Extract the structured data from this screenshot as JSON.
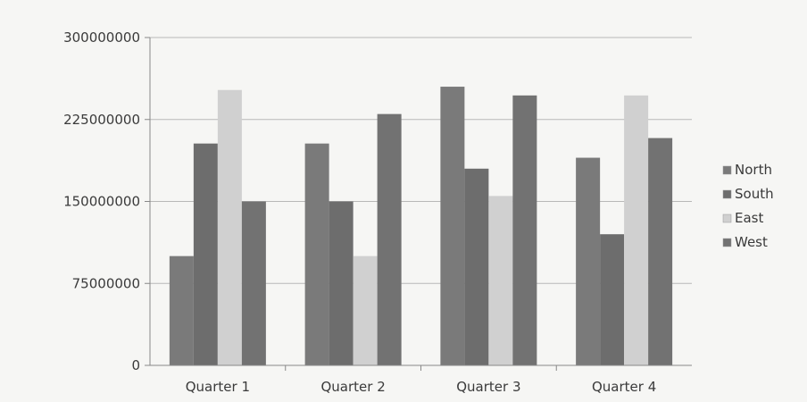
{
  "chart_data": {
    "type": "bar",
    "title": "",
    "xlabel": "",
    "ylabel": "",
    "categories": [
      "Quarter 1",
      "Quarter 2",
      "Quarter 3",
      "Quarter 4"
    ],
    "series": [
      {
        "name": "North",
        "color": "#7a7a7a",
        "values": [
          100000000,
          203000000,
          255000000,
          190000000
        ]
      },
      {
        "name": "South",
        "color": "#6d6d6d",
        "values": [
          203000000,
          150000000,
          180000000,
          120000000
        ]
      },
      {
        "name": "East",
        "color": "#d0d0d0",
        "values": [
          252000000,
          100000000,
          155000000,
          247000000
        ]
      },
      {
        "name": "West",
        "color": "#727272",
        "values": [
          150000000,
          230000000,
          247000000,
          208000000
        ]
      }
    ],
    "ylim": [
      0,
      300000000
    ],
    "yticks": [
      0,
      75000000,
      150000000,
      225000000,
      300000000
    ],
    "ytick_labels": [
      "0",
      "75000000",
      "150000000",
      "225000000",
      "300000000"
    ],
    "grid": true,
    "legend_position": "right"
  }
}
